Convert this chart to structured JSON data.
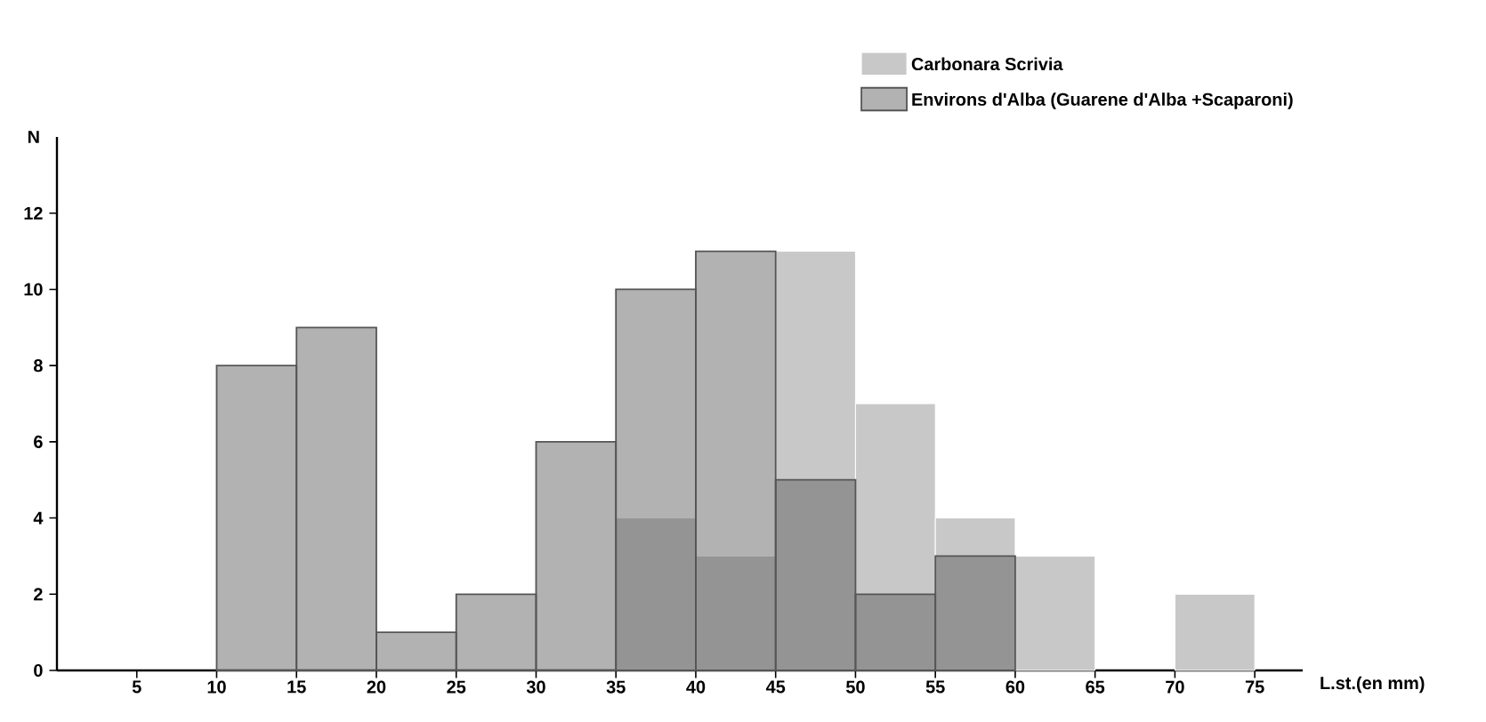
{
  "chart_data": {
    "type": "histogram",
    "xlabel": "L.st.(en mm)",
    "ylabel": "N",
    "bins": [
      10,
      15,
      20,
      25,
      30,
      35,
      40,
      45,
      50,
      55,
      60,
      65,
      70,
      75
    ],
    "series": [
      {
        "name": "Carbonara Scrivia",
        "color": "#c8c8c8",
        "values": [
          null,
          null,
          null,
          null,
          null,
          4,
          3,
          11,
          7,
          4,
          3,
          null,
          2
        ]
      },
      {
        "name": "Environs d'Alba (Guarene d'Alba +Scaparoni)",
        "color": "#555555",
        "values": [
          8,
          9,
          1,
          2,
          6,
          10,
          11,
          5,
          2,
          3,
          null,
          null,
          null
        ]
      }
    ],
    "xlim": [
      0,
      78
    ],
    "ylim": [
      0,
      14
    ],
    "xticks": [
      5,
      10,
      15,
      20,
      25,
      30,
      35,
      40,
      45,
      50,
      55,
      60,
      65,
      70,
      75
    ],
    "yticks": [
      0,
      2,
      4,
      6,
      8,
      10,
      12
    ],
    "legend": "top right",
    "grid": false
  }
}
